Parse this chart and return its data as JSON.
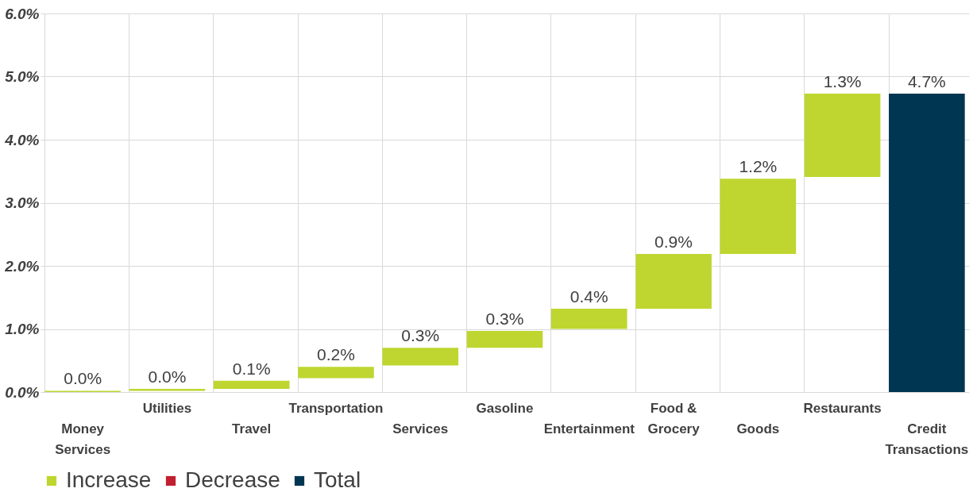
{
  "chart_data": {
    "type": "bar",
    "categories": [
      "Money Services",
      "Utilities",
      "Travel",
      "Transportation",
      "Services",
      "Gasoline",
      "Entertainment",
      "Food & Grocery",
      "Goods",
      "Restaurants",
      "Credit Transactions"
    ],
    "series": [
      {
        "name": "Increase",
        "color": "#bed62f",
        "base": [
          0,
          0.02,
          0.05,
          0.22,
          0.42,
          0.7,
          1.0,
          1.32,
          2.19,
          3.41,
          null
        ],
        "values": [
          0.02,
          0.03,
          0.13,
          0.18,
          0.28,
          0.27,
          0.32,
          0.87,
          1.19,
          1.32,
          null
        ]
      },
      {
        "name": "Decrease",
        "color": "#c0202f",
        "values": [
          null,
          null,
          null,
          null,
          null,
          null,
          null,
          null,
          null,
          null,
          null
        ]
      },
      {
        "name": "Total",
        "color": "#003652",
        "base": [
          null,
          null,
          null,
          null,
          null,
          null,
          null,
          null,
          null,
          null,
          0
        ],
        "values": [
          null,
          null,
          null,
          null,
          null,
          null,
          null,
          null,
          null,
          null,
          4.73
        ]
      }
    ],
    "value_labels": [
      "0.0%",
      "0.0%",
      "0.1%",
      "0.2%",
      "0.3%",
      "0.3%",
      "0.4%",
      "0.9%",
      "1.2%",
      "1.3%",
      "4.7%"
    ],
    "ylim": [
      0,
      6
    ],
    "yticks": [
      {
        "value": 0,
        "label": "0.0%"
      },
      {
        "value": 1,
        "label": "1.0%"
      },
      {
        "value": 2,
        "label": "2.0%"
      },
      {
        "value": 3,
        "label": "3.0%"
      },
      {
        "value": 4,
        "label": "4.0%"
      },
      {
        "value": 5,
        "label": "5.0%"
      },
      {
        "value": 6,
        "label": "6.0%"
      }
    ],
    "grid": true,
    "legend": "bottom"
  }
}
